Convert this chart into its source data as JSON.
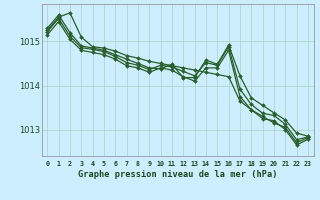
{
  "title": "Graphe pression niveau de la mer (hPa)",
  "background_color": "#cceeff",
  "grid_color": "#b0d8cc",
  "line_color": "#2a5e2a",
  "marker_color": "#2a5e2a",
  "x_labels": [
    "0",
    "1",
    "2",
    "3",
    "4",
    "5",
    "6",
    "7",
    "8",
    "9",
    "10",
    "11",
    "12",
    "13",
    "14",
    "15",
    "16",
    "17",
    "18",
    "19",
    "20",
    "21",
    "22",
    "23"
  ],
  "ylim": [
    1012.4,
    1015.85
  ],
  "yticks": [
    1013,
    1014,
    1015
  ],
  "series": [
    [
      1015.25,
      1015.55,
      1015.65,
      1015.1,
      1014.88,
      1014.85,
      1014.78,
      1014.68,
      1014.62,
      1014.55,
      1014.5,
      1014.45,
      1014.4,
      1014.35,
      1014.3,
      1014.25,
      1014.2,
      1013.65,
      1013.45,
      1013.3,
      1013.15,
      1013.05,
      1012.7,
      1012.82
    ],
    [
      1015.3,
      1015.6,
      1015.2,
      1014.9,
      1014.85,
      1014.8,
      1014.7,
      1014.6,
      1014.5,
      1014.4,
      1014.38,
      1014.48,
      1014.18,
      1014.18,
      1014.58,
      1014.48,
      1014.92,
      1014.22,
      1013.72,
      1013.55,
      1013.38,
      1013.22,
      1012.92,
      1012.85
    ],
    [
      1015.22,
      1015.52,
      1015.12,
      1014.86,
      1014.82,
      1014.77,
      1014.66,
      1014.52,
      1014.46,
      1014.36,
      1014.46,
      1014.42,
      1014.32,
      1014.22,
      1014.52,
      1014.46,
      1014.88,
      1013.92,
      1013.57,
      1013.37,
      1013.32,
      1013.12,
      1012.77,
      1012.83
    ],
    [
      1015.15,
      1015.45,
      1015.05,
      1014.8,
      1014.75,
      1014.7,
      1014.6,
      1014.45,
      1014.4,
      1014.3,
      1014.4,
      1014.35,
      1014.2,
      1014.1,
      1014.4,
      1014.4,
      1014.8,
      1013.75,
      1013.45,
      1013.25,
      1013.2,
      1013.0,
      1012.65,
      1012.78
    ]
  ]
}
